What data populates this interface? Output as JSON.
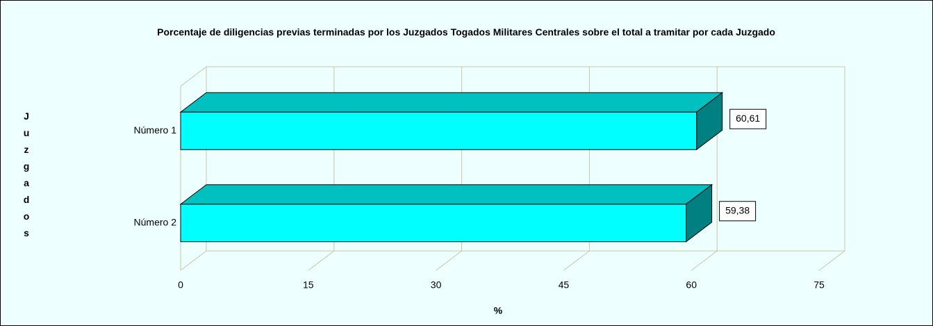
{
  "chart_data": {
    "type": "bar3d_horizontal",
    "title": "Porcentaje de diligencias previas terminadas por los Juzgados Togados Militares Centrales sobre el total a tramitar por cada Juzgado",
    "x_label": "%",
    "y_label": "Juzgados",
    "categories": [
      "Número 1",
      "Número 2"
    ],
    "values": [
      60.61,
      59.38
    ],
    "value_labels": [
      "60,61",
      "59,38"
    ],
    "color": "#00ffff",
    "xlim": [
      0,
      75
    ],
    "xticks": [
      0,
      15,
      30,
      45,
      60,
      75
    ],
    "grid": true
  }
}
